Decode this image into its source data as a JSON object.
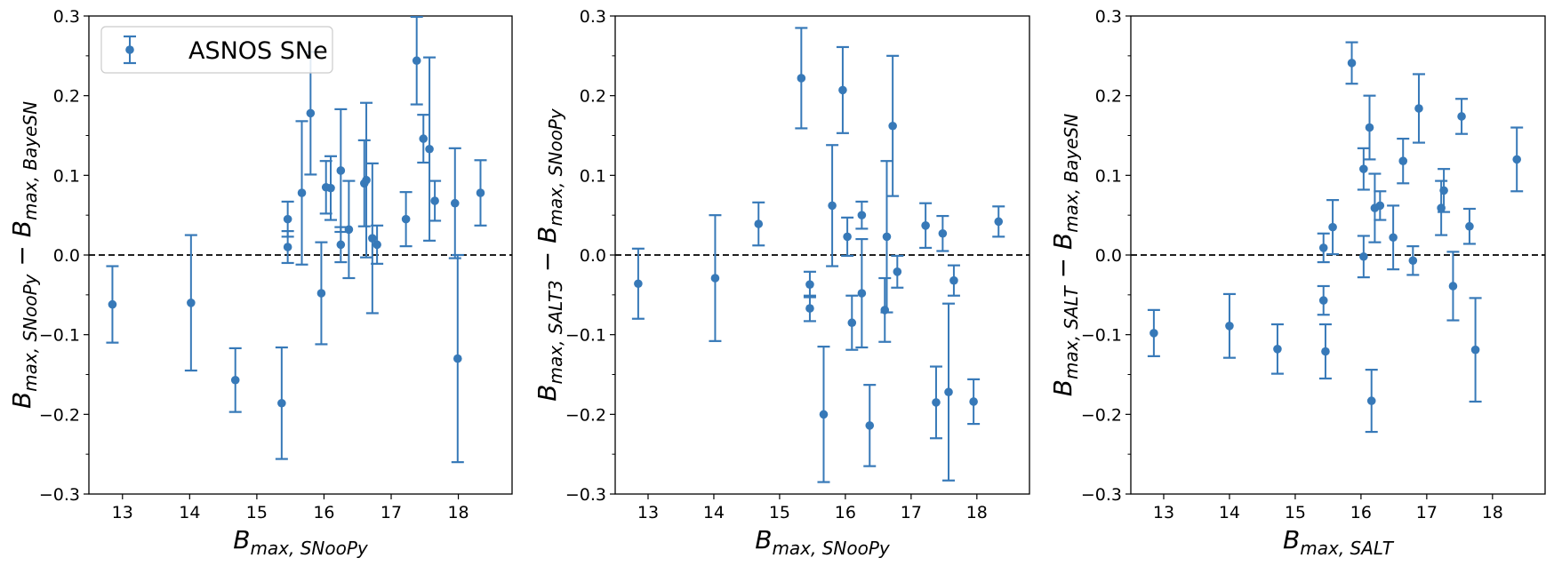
{
  "chart_data": [
    {
      "type": "scatter",
      "panel": "left",
      "xlabel": {
        "main": "B",
        "sub": "max, SNooPy"
      },
      "ylabel": {
        "main": "B",
        "sub1": "max, SNooPy",
        "op": " − B",
        "sub2": "max, BayeSN"
      },
      "xlim": [
        12.5,
        18.8
      ],
      "ylim": [
        -0.3,
        0.3
      ],
      "xticks": [
        "13",
        "14",
        "15",
        "16",
        "17",
        "18"
      ],
      "xtick_values": [
        13,
        14,
        15,
        16,
        17,
        18
      ],
      "yticks": [
        "−0.3",
        "−0.2",
        "−0.1",
        "0.0",
        "0.1",
        "0.2",
        "0.3"
      ],
      "ytick_values": [
        -0.3,
        -0.2,
        -0.1,
        0.0,
        0.1,
        0.2,
        0.3
      ],
      "reference_line": 0.0,
      "legend": {
        "label": "ASNOS SNe",
        "position": "top-left"
      },
      "series": [
        {
          "name": "ASNOS SNe",
          "color": "#3779b8",
          "points": [
            {
              "x": 12.85,
              "y": -0.062,
              "err": 0.048
            },
            {
              "x": 14.02,
              "y": -0.06,
              "err": 0.085
            },
            {
              "x": 14.68,
              "y": -0.157,
              "err": 0.04
            },
            {
              "x": 15.37,
              "y": -0.186,
              "err": 0.07
            },
            {
              "x": 15.46,
              "y": 0.045,
              "err": 0.022
            },
            {
              "x": 15.46,
              "y": 0.01,
              "err": 0.02
            },
            {
              "x": 15.67,
              "y": 0.078,
              "err": 0.09
            },
            {
              "x": 15.8,
              "y": 0.178,
              "err": 0.077
            },
            {
              "x": 15.96,
              "y": -0.048,
              "err": 0.064
            },
            {
              "x": 16.03,
              "y": 0.085,
              "err": 0.033
            },
            {
              "x": 16.1,
              "y": 0.084,
              "err": 0.04
            },
            {
              "x": 16.25,
              "y": 0.106,
              "err": 0.077
            },
            {
              "x": 16.25,
              "y": 0.013,
              "err": 0.022
            },
            {
              "x": 16.37,
              "y": 0.032,
              "err": 0.061
            },
            {
              "x": 16.6,
              "y": 0.09,
              "err": 0.054
            },
            {
              "x": 16.63,
              "y": 0.094,
              "err": 0.097
            },
            {
              "x": 16.72,
              "y": 0.021,
              "err": 0.094
            },
            {
              "x": 16.79,
              "y": 0.013,
              "err": 0.024
            },
            {
              "x": 17.22,
              "y": 0.045,
              "err": 0.034
            },
            {
              "x": 17.38,
              "y": 0.244,
              "err": 0.055
            },
            {
              "x": 17.48,
              "y": 0.146,
              "err": 0.03
            },
            {
              "x": 17.57,
              "y": 0.133,
              "err": 0.115
            },
            {
              "x": 17.65,
              "y": 0.068,
              "err": 0.025
            },
            {
              "x": 17.95,
              "y": 0.065,
              "err": 0.069
            },
            {
              "x": 17.99,
              "y": -0.13,
              "err": 0.13
            },
            {
              "x": 18.33,
              "y": 0.078,
              "err": 0.041
            }
          ]
        }
      ]
    },
    {
      "type": "scatter",
      "panel": "middle",
      "xlabel": {
        "main": "B",
        "sub": "max, SNooPy"
      },
      "ylabel": {
        "main": "B",
        "sub1": "max, SALT3",
        "op": " − B",
        "sub2": "max, SNooPy"
      },
      "xlim": [
        12.5,
        18.8
      ],
      "ylim": [
        -0.3,
        0.3
      ],
      "xticks": [
        "13",
        "14",
        "15",
        "16",
        "17",
        "18"
      ],
      "xtick_values": [
        13,
        14,
        15,
        16,
        17,
        18
      ],
      "yticks": [
        "−0.3",
        "−0.2",
        "−0.1",
        "0.0",
        "0.1",
        "0.2",
        "0.3"
      ],
      "ytick_values": [
        -0.3,
        -0.2,
        -0.1,
        0.0,
        0.1,
        0.2,
        0.3
      ],
      "reference_line": 0.0,
      "series": [
        {
          "name": "ASNOS SNe",
          "color": "#3779b8",
          "points": [
            {
              "x": 12.85,
              "y": -0.036,
              "err": 0.044
            },
            {
              "x": 14.02,
              "y": -0.029,
              "err": 0.079
            },
            {
              "x": 14.68,
              "y": 0.039,
              "err": 0.027
            },
            {
              "x": 15.33,
              "y": 0.222,
              "err": 0.063
            },
            {
              "x": 15.46,
              "y": -0.037,
              "err": 0.016
            },
            {
              "x": 15.46,
              "y": -0.067,
              "err": 0.016
            },
            {
              "x": 15.67,
              "y": -0.2,
              "err": 0.085
            },
            {
              "x": 15.8,
              "y": 0.062,
              "err": 0.076
            },
            {
              "x": 15.96,
              "y": 0.207,
              "err": 0.054
            },
            {
              "x": 16.03,
              "y": 0.023,
              "err": 0.024
            },
            {
              "x": 16.1,
              "y": -0.085,
              "err": 0.034
            },
            {
              "x": 16.25,
              "y": 0.05,
              "err": 0.017
            },
            {
              "x": 16.25,
              "y": -0.048,
              "err": 0.068
            },
            {
              "x": 16.37,
              "y": -0.214,
              "err": 0.051
            },
            {
              "x": 16.6,
              "y": -0.069,
              "err": 0.04
            },
            {
              "x": 16.63,
              "y": 0.023,
              "err": 0.095
            },
            {
              "x": 16.72,
              "y": 0.162,
              "err": 0.088
            },
            {
              "x": 16.79,
              "y": -0.021,
              "err": 0.02
            },
            {
              "x": 17.22,
              "y": 0.037,
              "err": 0.028
            },
            {
              "x": 17.38,
              "y": -0.185,
              "err": 0.045
            },
            {
              "x": 17.48,
              "y": 0.027,
              "err": 0.022
            },
            {
              "x": 17.57,
              "y": -0.172,
              "err": 0.111
            },
            {
              "x": 17.65,
              "y": -0.032,
              "err": 0.019
            },
            {
              "x": 17.95,
              "y": -0.184,
              "err": 0.028
            },
            {
              "x": 18.33,
              "y": 0.042,
              "err": 0.019
            }
          ]
        }
      ]
    },
    {
      "type": "scatter",
      "panel": "right",
      "xlabel": {
        "main": "B",
        "sub": "max, SALT"
      },
      "ylabel": {
        "main": "B",
        "sub1": "max, SALT",
        "op": " − B",
        "sub2": "max, BayeSN"
      },
      "xlim": [
        12.5,
        18.8
      ],
      "ylim": [
        -0.3,
        0.3
      ],
      "xticks": [
        "13",
        "14",
        "15",
        "16",
        "17",
        "18"
      ],
      "xtick_values": [
        13,
        14,
        15,
        16,
        17,
        18
      ],
      "yticks": [
        "−0.3",
        "−0.2",
        "−0.1",
        "0.0",
        "0.1",
        "0.2",
        "0.3"
      ],
      "ytick_values": [
        -0.3,
        -0.2,
        -0.1,
        0.0,
        0.1,
        0.2,
        0.3
      ],
      "reference_line": 0.0,
      "series": [
        {
          "name": "ASNOS SNe",
          "color": "#3779b8",
          "points": [
            {
              "x": 12.85,
              "y": -0.098,
              "err": 0.029
            },
            {
              "x": 14.0,
              "y": -0.089,
              "err": 0.04
            },
            {
              "x": 14.73,
              "y": -0.118,
              "err": 0.031
            },
            {
              "x": 15.43,
              "y": 0.009,
              "err": 0.018
            },
            {
              "x": 15.43,
              "y": -0.057,
              "err": 0.018
            },
            {
              "x": 15.46,
              "y": -0.121,
              "err": 0.034
            },
            {
              "x": 15.57,
              "y": 0.035,
              "err": 0.034
            },
            {
              "x": 15.86,
              "y": 0.241,
              "err": 0.026
            },
            {
              "x": 16.04,
              "y": 0.108,
              "err": 0.026
            },
            {
              "x": 16.04,
              "y": -0.002,
              "err": 0.026
            },
            {
              "x": 16.13,
              "y": 0.16,
              "err": 0.04
            },
            {
              "x": 16.16,
              "y": -0.183,
              "err": 0.039
            },
            {
              "x": 16.21,
              "y": 0.059,
              "err": 0.043
            },
            {
              "x": 16.29,
              "y": 0.062,
              "err": 0.018
            },
            {
              "x": 16.49,
              "y": 0.022,
              "err": 0.04
            },
            {
              "x": 16.64,
              "y": 0.118,
              "err": 0.028
            },
            {
              "x": 16.79,
              "y": -0.007,
              "err": 0.018
            },
            {
              "x": 16.88,
              "y": 0.184,
              "err": 0.043
            },
            {
              "x": 17.22,
              "y": 0.059,
              "err": 0.034
            },
            {
              "x": 17.26,
              "y": 0.081,
              "err": 0.027
            },
            {
              "x": 17.4,
              "y": -0.039,
              "err": 0.043
            },
            {
              "x": 17.53,
              "y": 0.174,
              "err": 0.022
            },
            {
              "x": 17.65,
              "y": 0.036,
              "err": 0.022
            },
            {
              "x": 17.74,
              "y": -0.119,
              "err": 0.065
            },
            {
              "x": 18.37,
              "y": 0.12,
              "err": 0.04
            }
          ]
        }
      ]
    }
  ]
}
